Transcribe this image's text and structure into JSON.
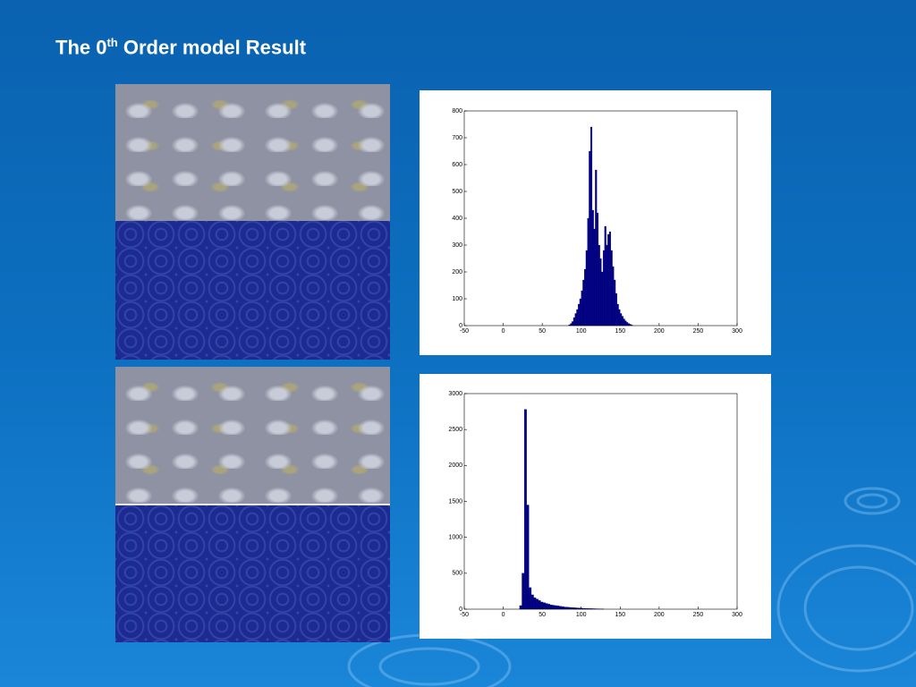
{
  "title": {
    "main": "The 0",
    "sup": "th",
    "rest": "Order model Result"
  },
  "chart_data": [
    {
      "type": "histogram",
      "color": "#000080",
      "bins": [
        84,
        86,
        88,
        90,
        92,
        94,
        96,
        98,
        100,
        102,
        104,
        106,
        108,
        110,
        112,
        114,
        116,
        118,
        120,
        122,
        124,
        126,
        128,
        130,
        132,
        134,
        136,
        138,
        140,
        142,
        144,
        146,
        148,
        150,
        152,
        154,
        156,
        158,
        160,
        162,
        164,
        166
      ],
      "values": [
        3,
        8,
        15,
        30,
        45,
        60,
        80,
        100,
        130,
        170,
        210,
        280,
        400,
        650,
        740,
        430,
        360,
        580,
        420,
        300,
        250,
        200,
        280,
        370,
        300,
        340,
        350,
        280,
        220,
        170,
        120,
        80,
        60,
        45,
        35,
        25,
        18,
        12,
        8,
        5,
        2
      ],
      "xlim": [
        -50,
        300
      ],
      "xticks": [
        -50,
        0,
        50,
        100,
        150,
        200,
        250,
        300
      ],
      "ylim": [
        0,
        800
      ],
      "yticks": [
        0,
        100,
        200,
        300,
        400,
        500,
        600,
        700,
        800
      ]
    },
    {
      "type": "histogram",
      "color": "#000080",
      "bins": [
        21,
        24,
        27,
        30,
        33,
        36,
        39,
        42,
        45,
        48,
        51,
        54,
        57,
        60,
        63,
        66,
        69,
        72,
        75,
        78,
        81,
        84,
        87,
        90,
        93,
        96,
        99,
        102,
        105,
        108,
        111,
        114,
        117,
        120,
        123,
        126,
        129
      ],
      "values": [
        50,
        500,
        2780,
        1450,
        300,
        200,
        160,
        140,
        120,
        100,
        90,
        80,
        70,
        60,
        55,
        50,
        45,
        40,
        35,
        30,
        28,
        25,
        22,
        20,
        18,
        16,
        14,
        12,
        10,
        9,
        8,
        7,
        6,
        5,
        4,
        3
      ],
      "xlim": [
        -50,
        300
      ],
      "xticks": [
        -50,
        0,
        50,
        100,
        150,
        200,
        250,
        300
      ],
      "ylim": [
        0,
        3000
      ],
      "yticks": [
        0,
        500,
        1000,
        1500,
        2000,
        2500,
        3000
      ]
    }
  ]
}
